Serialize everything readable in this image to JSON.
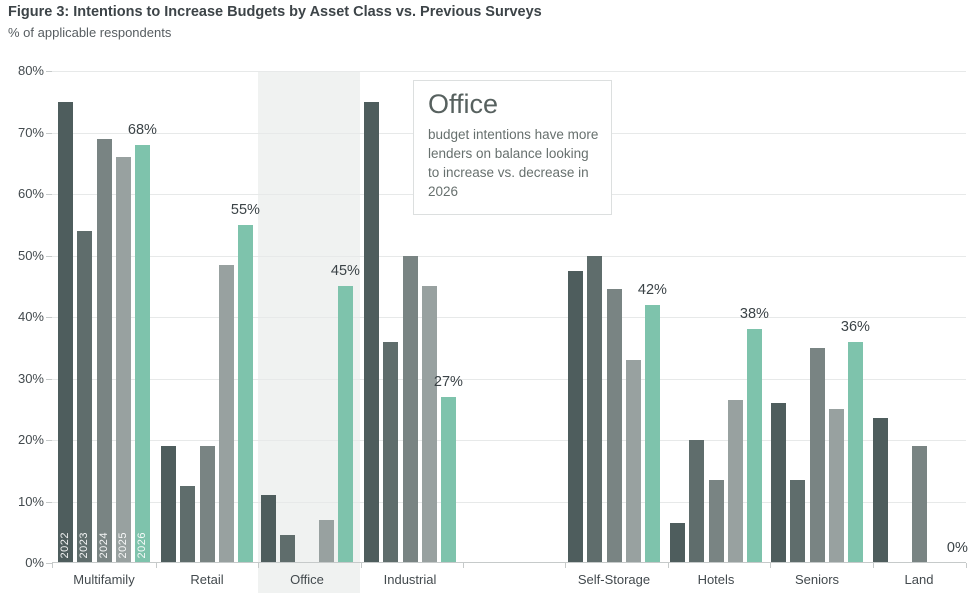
{
  "header": {
    "title": "Figure 3: Intentions to Increase Budgets by Asset Class vs. Previous Surveys",
    "subtitle": "% of applicable respondents"
  },
  "annotation": {
    "heading": "Office",
    "body": "budget intentions have more lenders on balance looking to increase vs. decrease in 2026"
  },
  "chart_data": {
    "type": "bar",
    "title": "Figure 3: Intentions to Increase Budgets by Asset Class vs. Previous Surveys",
    "ylabel": "% of applicable respondents",
    "ylim": [
      0,
      80
    ],
    "grid": true,
    "ytick_labels": [
      "80%",
      "70%",
      "60%",
      "50%",
      "40%",
      "30%",
      "20%",
      "10%",
      "0%"
    ],
    "categories": [
      "Multifamily",
      "Retail",
      "Office",
      "Industrial",
      "Self-Storage",
      "Hotels",
      "Seniors",
      "Land"
    ],
    "series": [
      {
        "name": "2022",
        "color": "#4e5d5d",
        "values": [
          75,
          19,
          11,
          75,
          47.5,
          6.5,
          26,
          23.5
        ]
      },
      {
        "name": "2023",
        "color": "#5f6d6c",
        "values": [
          54,
          12.5,
          4.5,
          36,
          50,
          20,
          13.5,
          null
        ]
      },
      {
        "name": "2024",
        "color": "#798483",
        "values": [
          69,
          19,
          null,
          50,
          44.5,
          13.5,
          35,
          19
        ]
      },
      {
        "name": "2025",
        "color": "#98a1a0",
        "values": [
          66,
          48.5,
          7,
          45,
          33,
          26.5,
          25,
          null
        ]
      },
      {
        "name": "2026",
        "color": "#7ec3ac",
        "values": [
          68,
          55,
          45,
          27,
          42,
          38,
          36,
          0
        ]
      }
    ],
    "value_labels_2026": [
      "68%",
      "55%",
      "45%",
      "27%",
      "42%",
      "38%",
      "36%",
      "0%"
    ],
    "highlighted_category": "Office",
    "highlight_color": "#f0f2f1",
    "legend_position": "none",
    "year_labels_shown_inside_first_group": [
      "2022",
      "2023",
      "2024",
      "2025",
      "2026"
    ]
  }
}
